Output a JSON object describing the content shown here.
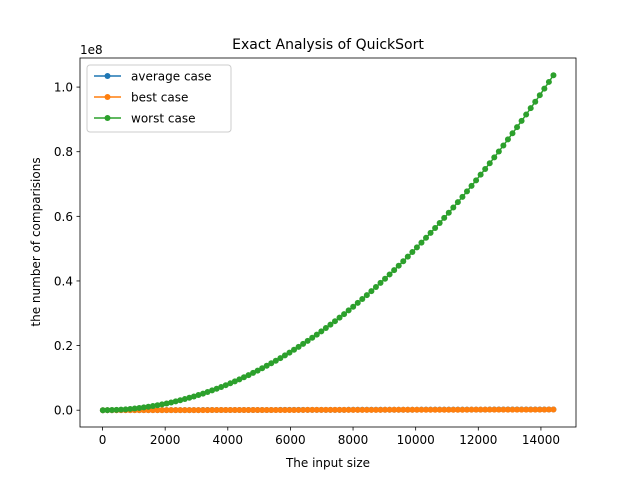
{
  "chart_data": {
    "type": "line",
    "title": "Exact Analysis of QuickSort",
    "xlabel": "The input size",
    "ylabel": "the number of comparisions",
    "y_offset_label": "1e8",
    "xlim": [
      -720,
      15120
    ],
    "ylim": [
      -5200000,
      109000000
    ],
    "x_ticks": [
      0,
      2000,
      4000,
      6000,
      8000,
      10000,
      12000,
      14000
    ],
    "x_tick_labels": [
      "0",
      "2000",
      "4000",
      "6000",
      "8000",
      "10000",
      "12000",
      "14000"
    ],
    "y_ticks": [
      0,
      20000000,
      40000000,
      60000000,
      80000000,
      100000000
    ],
    "y_tick_labels": [
      "0.0",
      "0.2",
      "0.4",
      "0.6",
      "0.8",
      "1.0"
    ],
    "grid": false,
    "legend_position": "upper-left",
    "x_range": {
      "start": 10,
      "end": 14400,
      "count": 100
    },
    "series": [
      {
        "name": "average case",
        "color": "#1f77b4",
        "formula": "average"
      },
      {
        "name": "best case",
        "color": "#ff7f0e",
        "formula": "best"
      },
      {
        "name": "worst case",
        "color": "#2ca02c",
        "formula": "worst"
      }
    ]
  }
}
